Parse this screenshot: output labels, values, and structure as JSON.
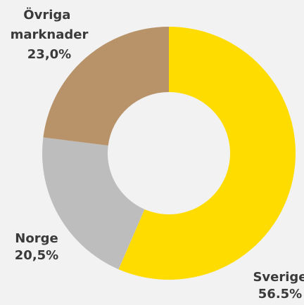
{
  "chart_data": {
    "type": "donut",
    "categories": [
      "Sverige",
      "Norge",
      "Övriga marknader"
    ],
    "values": [
      56.5,
      20.5,
      23.0
    ],
    "value_labels": [
      "56.5%",
      "20,5%",
      "23,0%"
    ],
    "colors": [
      "#ffdc00",
      "#bdbdbd",
      "#b8936a"
    ]
  }
}
